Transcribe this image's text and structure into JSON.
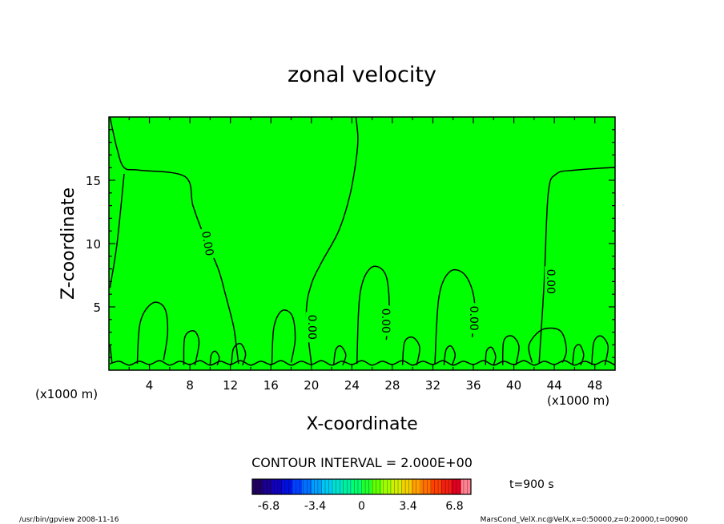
{
  "chart_data": {
    "type": "contour",
    "title": "zonal velocity",
    "xlabel": "X-coordinate",
    "ylabel": "Z-coordinate",
    "x_unit_left": "(x1000 m)",
    "x_unit_right": "(x1000 m)",
    "xlim": [
      0,
      50
    ],
    "ylim": [
      0,
      20
    ],
    "x_ticks": [
      4,
      8,
      12,
      16,
      20,
      24,
      28,
      32,
      36,
      40,
      44,
      48
    ],
    "y_ticks": [
      5,
      10,
      15
    ],
    "fill_color": "#00ff00",
    "contour_interval_text": "CONTOUR INTERVAL = 2.000E+00",
    "contour_labels": [
      {
        "text": "0.00",
        "x": 9.7,
        "y": 10.0,
        "angle": 80
      },
      {
        "text": "0.00",
        "x": 20.0,
        "y": 3.4,
        "angle": 90
      },
      {
        "text": "0.00",
        "x": 27.3,
        "y": 3.9,
        "angle": 90
      },
      {
        "text": "0.00",
        "x": 36.0,
        "y": 4.1,
        "angle": 90
      },
      {
        "text": "0.00",
        "x": 43.6,
        "y": 7.0,
        "angle": 90
      }
    ],
    "contours": [
      [
        [
          0.1,
          20
        ],
        [
          0.8,
          17.5
        ],
        [
          1.5,
          16
        ],
        [
          3,
          15.8
        ],
        [
          7.5,
          15.3
        ],
        [
          8.3,
          13
        ],
        [
          9.3,
          10.8
        ],
        [
          10.8,
          8
        ],
        [
          11.5,
          6
        ],
        [
          12.3,
          3.5
        ],
        [
          12.6,
          1.8
        ],
        [
          12.8,
          0.5
        ]
      ],
      [
        [
          1.5,
          15.5
        ],
        [
          0.8,
          10
        ],
        [
          0.1,
          6.5
        ]
      ],
      [
        [
          20.0,
          0.5
        ],
        [
          19.5,
          4.5
        ],
        [
          20,
          6.8
        ],
        [
          21,
          8.5
        ],
        [
          22.7,
          11
        ],
        [
          23.8,
          13.8
        ],
        [
          24.4,
          16.5
        ],
        [
          24.6,
          18.3
        ],
        [
          24.4,
          20
        ]
      ],
      [
        [
          42.5,
          0.6
        ],
        [
          43.0,
          7
        ],
        [
          43.4,
          14
        ],
        [
          44.2,
          15.5
        ],
        [
          46,
          15.8
        ],
        [
          49.5,
          16
        ],
        [
          50,
          16
        ]
      ],
      [
        [
          2.8,
          0.5
        ],
        [
          3.1,
          3.8
        ],
        [
          4.3,
          5.3
        ],
        [
          5.5,
          4.9
        ],
        [
          5.8,
          3
        ],
        [
          5.4,
          0.8
        ]
      ],
      [
        [
          16.1,
          0.5
        ],
        [
          16.3,
          3.4
        ],
        [
          17.1,
          4.7
        ],
        [
          18.1,
          4.3
        ],
        [
          18.4,
          2.5
        ],
        [
          18.0,
          0.6
        ]
      ],
      [
        [
          24.5,
          0.5
        ],
        [
          24.8,
          6
        ],
        [
          25.9,
          8.1
        ],
        [
          27.3,
          7.6
        ],
        [
          27.7,
          5
        ],
        [
          27.4,
          2.4
        ]
      ],
      [
        [
          32.2,
          0.5
        ],
        [
          32.6,
          5.8
        ],
        [
          33.7,
          7.8
        ],
        [
          35.2,
          7.5
        ],
        [
          36.1,
          5.5
        ],
        [
          35.9,
          2.6
        ]
      ],
      [
        [
          41.8,
          0.6
        ],
        [
          41.5,
          2
        ],
        [
          42.8,
          3.2
        ],
        [
          44.6,
          3.1
        ],
        [
          45.2,
          1.6
        ],
        [
          44.8,
          0.6
        ]
      ],
      [
        [
          7.4,
          0.4
        ],
        [
          7.5,
          2.6
        ],
        [
          8.4,
          3.1
        ],
        [
          8.9,
          2.2
        ],
        [
          8.5,
          0.4
        ]
      ],
      [
        [
          12.1,
          0.4
        ],
        [
          12.3,
          1.7
        ],
        [
          13,
          2.1
        ],
        [
          13.5,
          1.3
        ],
        [
          13.2,
          0.4
        ]
      ],
      [
        [
          10.0,
          0.4
        ],
        [
          10.1,
          1.2
        ],
        [
          10.5,
          1.5
        ],
        [
          10.9,
          1.0
        ],
        [
          10.7,
          0.4
        ]
      ],
      [
        [
          22.2,
          0.4
        ],
        [
          22.4,
          1.6
        ],
        [
          22.9,
          1.9
        ],
        [
          23.4,
          1.2
        ],
        [
          23.1,
          0.4
        ]
      ],
      [
        [
          29.0,
          0.4
        ],
        [
          29.2,
          2.2
        ],
        [
          30.0,
          2.6
        ],
        [
          30.7,
          1.8
        ],
        [
          30.4,
          0.4
        ]
      ],
      [
        [
          33.1,
          0.4
        ],
        [
          33.3,
          1.6
        ],
        [
          33.8,
          1.9
        ],
        [
          34.2,
          1.2
        ],
        [
          33.9,
          0.4
        ]
      ],
      [
        [
          37.2,
          0.4
        ],
        [
          37.3,
          1.5
        ],
        [
          37.8,
          1.8
        ],
        [
          38.2,
          1.1
        ],
        [
          38.0,
          0.4
        ]
      ],
      [
        [
          38.9,
          0.4
        ],
        [
          39.0,
          2.3
        ],
        [
          39.8,
          2.7
        ],
        [
          40.5,
          1.9
        ],
        [
          40.2,
          0.4
        ]
      ],
      [
        [
          45.8,
          0.4
        ],
        [
          46.0,
          1.7
        ],
        [
          46.5,
          2.0
        ],
        [
          46.9,
          1.2
        ],
        [
          46.6,
          0.4
        ]
      ],
      [
        [
          47.7,
          0.4
        ],
        [
          47.9,
          2.2
        ],
        [
          48.6,
          2.7
        ],
        [
          49.3,
          1.9
        ],
        [
          49.0,
          0.4
        ]
      ],
      [
        [
          0.1,
          2
        ],
        [
          0.3,
          0.6
        ]
      ],
      [
        [
          0.1,
          0.5
        ],
        [
          1,
          0.7
        ],
        [
          2,
          0.4
        ],
        [
          3,
          0.7
        ],
        [
          4,
          0.45
        ],
        [
          5,
          0.75
        ],
        [
          6,
          0.4
        ],
        [
          7,
          0.7
        ],
        [
          8,
          0.45
        ],
        [
          9,
          0.75
        ],
        [
          10,
          0.4
        ],
        [
          11,
          0.7
        ],
        [
          12,
          0.45
        ],
        [
          13,
          0.75
        ],
        [
          14,
          0.4
        ],
        [
          15,
          0.7
        ],
        [
          16,
          0.45
        ],
        [
          17,
          0.75
        ],
        [
          18,
          0.4
        ],
        [
          19,
          0.7
        ],
        [
          20,
          0.45
        ],
        [
          21,
          0.75
        ],
        [
          22,
          0.4
        ],
        [
          23,
          0.7
        ],
        [
          24,
          0.45
        ],
        [
          25,
          0.75
        ],
        [
          26,
          0.4
        ],
        [
          27,
          0.7
        ],
        [
          28,
          0.45
        ],
        [
          29,
          0.75
        ],
        [
          30,
          0.4
        ],
        [
          31,
          0.7
        ],
        [
          32,
          0.45
        ],
        [
          33,
          0.75
        ],
        [
          34,
          0.4
        ],
        [
          35,
          0.7
        ],
        [
          36,
          0.45
        ],
        [
          37,
          0.75
        ],
        [
          38,
          0.4
        ],
        [
          39,
          0.7
        ],
        [
          40,
          0.45
        ],
        [
          41,
          0.75
        ],
        [
          42,
          0.4
        ],
        [
          43,
          0.7
        ],
        [
          44,
          0.45
        ],
        [
          45,
          0.75
        ],
        [
          46,
          0.4
        ],
        [
          47,
          0.7
        ],
        [
          48,
          0.45
        ],
        [
          49,
          0.75
        ],
        [
          50,
          0.4
        ]
      ]
    ],
    "colorbar": {
      "min": -8.0,
      "max": 8.0,
      "tick_values": [
        -6.8,
        -3.4,
        0,
        3.4,
        6.8
      ],
      "tick_labels": [
        "-6.8",
        "-3.4",
        "0",
        "3.4",
        "6.8"
      ],
      "colors": [
        "#200060",
        "#1a0090",
        "#1000c0",
        "#0010e0",
        "#0040ff",
        "#0070ff",
        "#00a0ff",
        "#00c8f0",
        "#00e0d0",
        "#00f0a0",
        "#00ff70",
        "#20ff30",
        "#60ff00",
        "#a0ff00",
        "#d0f000",
        "#f0d000",
        "#ffa000",
        "#ff7000",
        "#ff4000",
        "#f02010",
        "#e00020",
        "#ff8090"
      ]
    },
    "time_label": "t=900 s"
  },
  "footer": {
    "left": "/usr/bin/gpview  2008-11-16",
    "right": "MarsCond_VelX.nc@VelX,x=0:50000,z=0:20000,t=00900"
  }
}
